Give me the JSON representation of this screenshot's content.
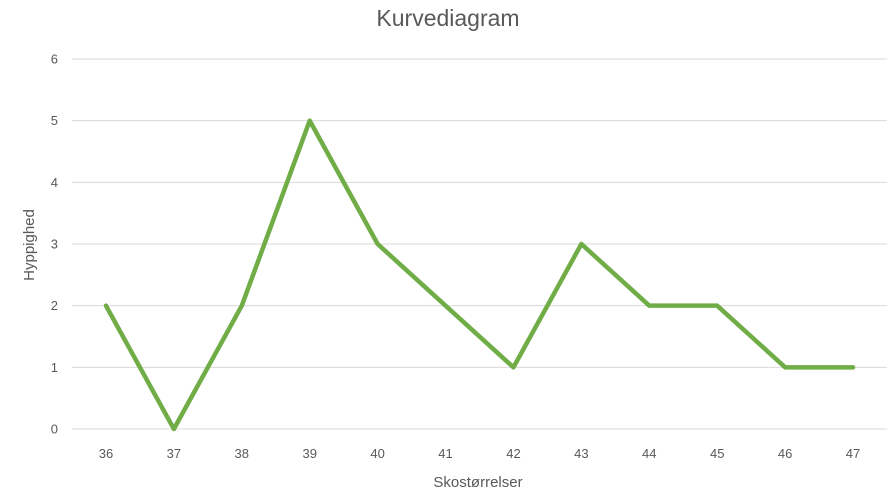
{
  "chart_data": {
    "type": "line",
    "title": "Kurvediagram",
    "xlabel": "Skostørrelser",
    "ylabel": "Hyppighed",
    "categories": [
      "36",
      "37",
      "38",
      "39",
      "40",
      "41",
      "42",
      "43",
      "44",
      "45",
      "46",
      "47"
    ],
    "series": [
      {
        "values": [
          2,
          0,
          2,
          5,
          3,
          2,
          1,
          3,
          2,
          2,
          1,
          1
        ],
        "color": "#70ad47"
      }
    ],
    "ylim": [
      0,
      6
    ],
    "yticks": [
      "0",
      "1",
      "2",
      "3",
      "4",
      "5",
      "6"
    ],
    "grid": true,
    "legend": "none"
  }
}
